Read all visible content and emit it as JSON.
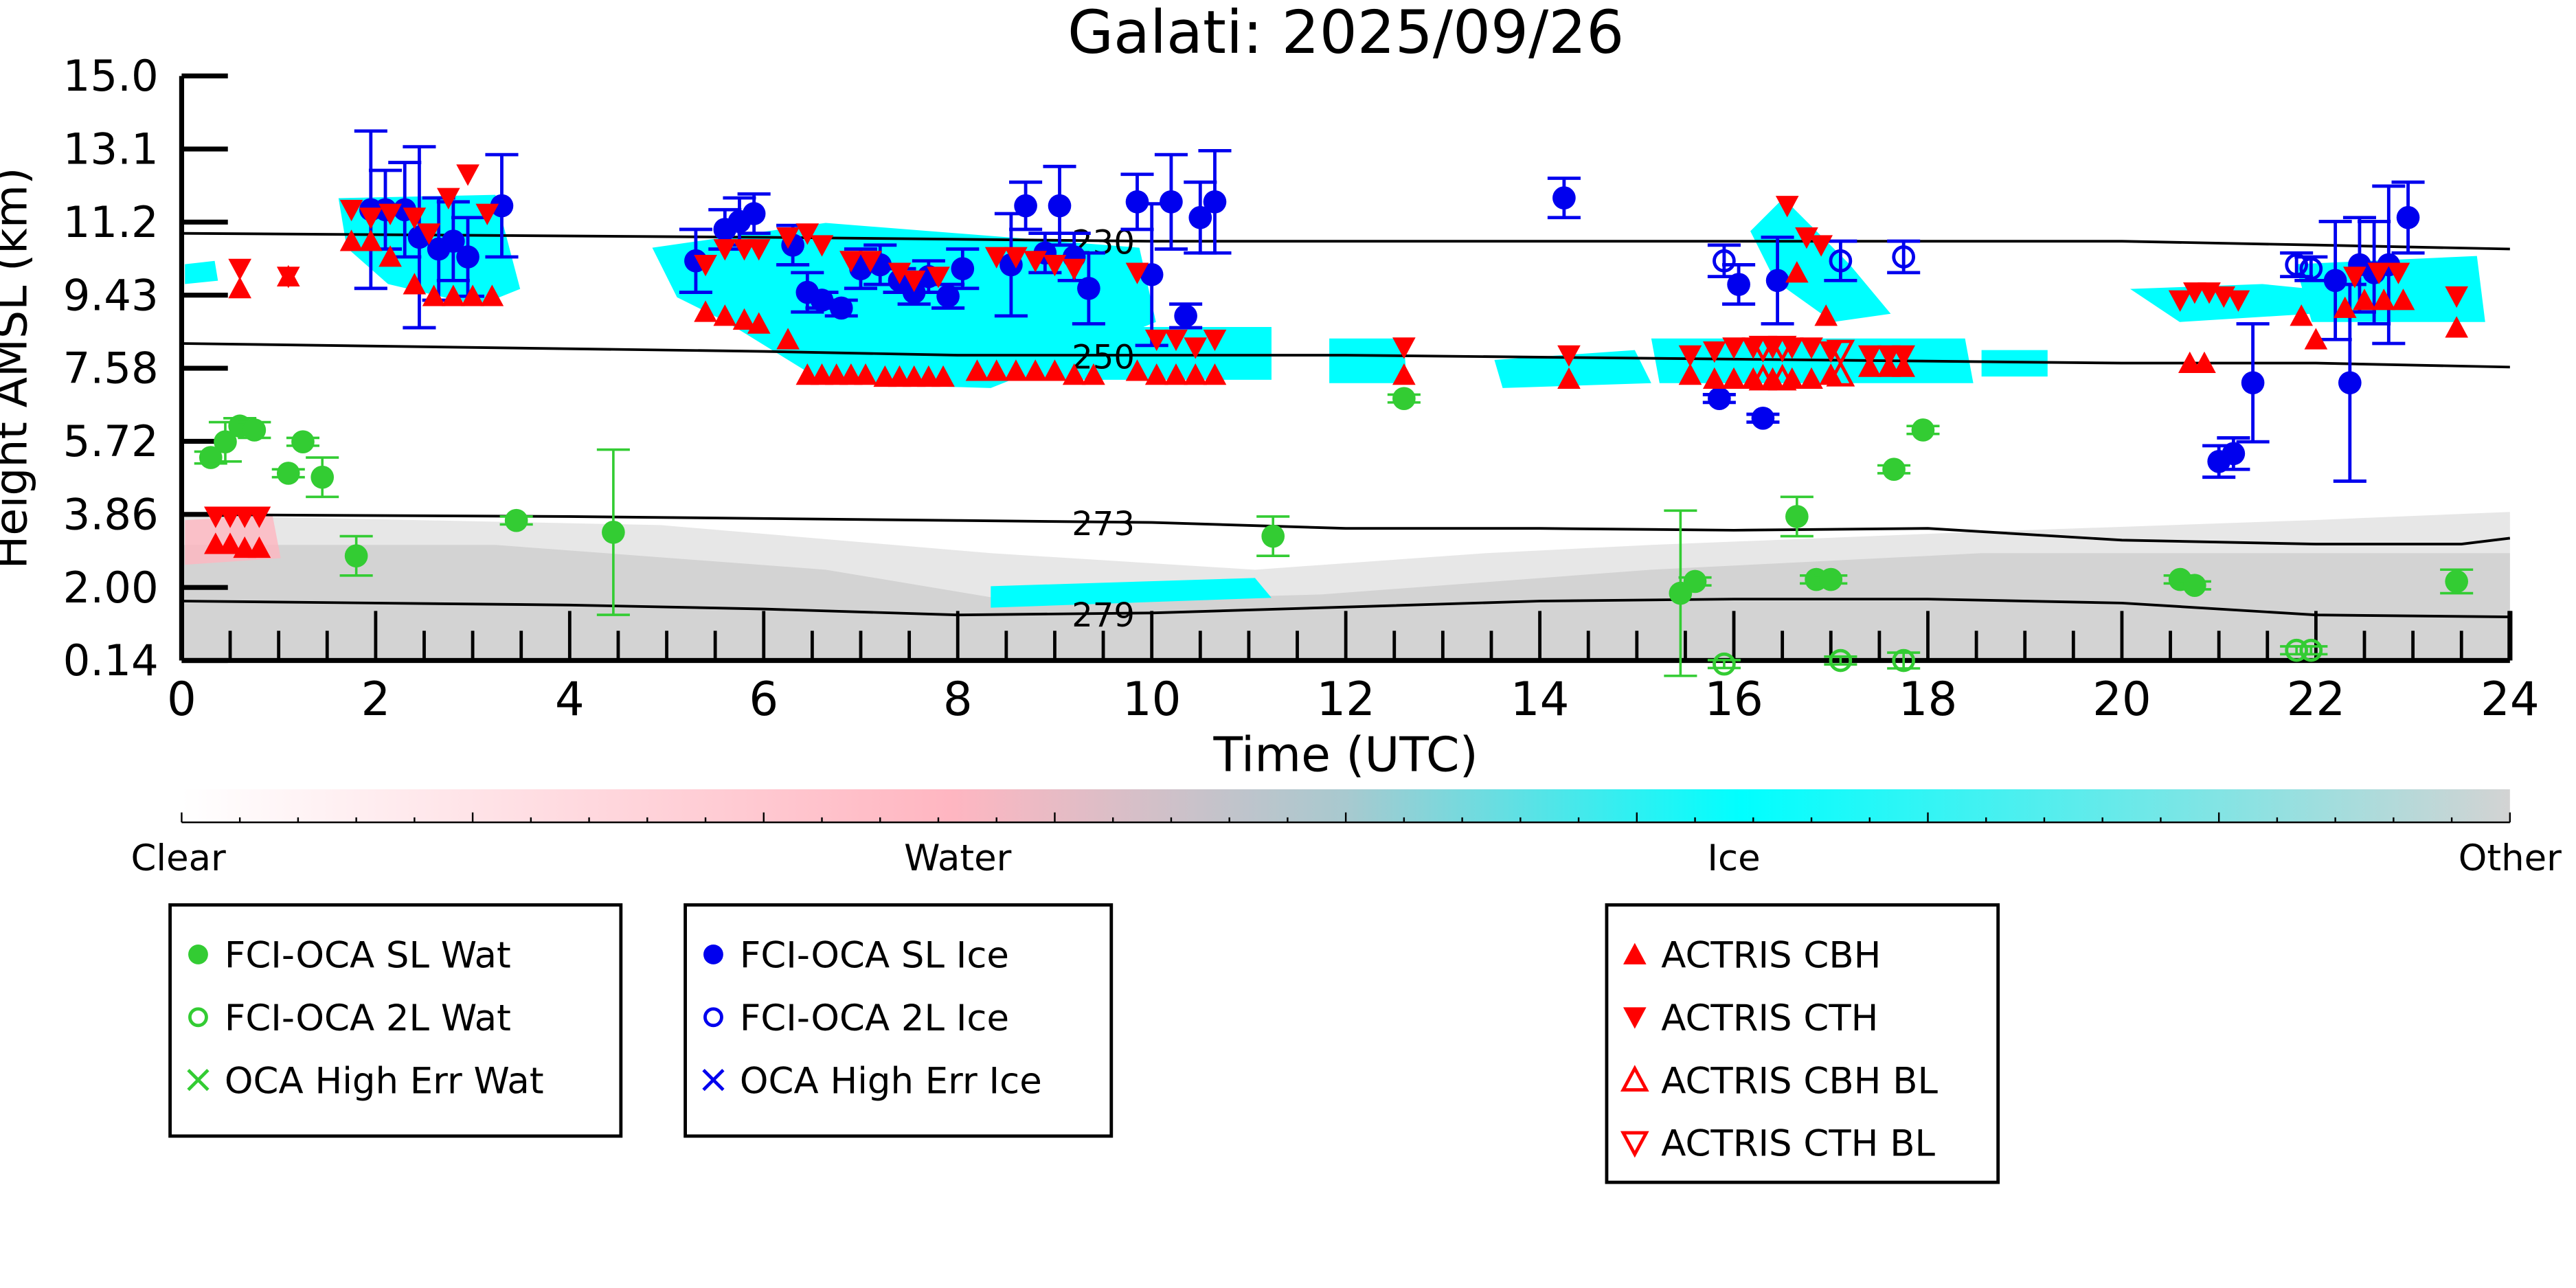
{
  "chart_data": {
    "type": "scatter",
    "title": "Galati: 2025/09/26",
    "xlabel": "Time (UTC)",
    "ylabel": "Height AMSL (km)",
    "xlim": [
      0,
      24
    ],
    "ylim": [
      0.14,
      15.0
    ],
    "xticks": [
      "0",
      "2",
      "4",
      "6",
      "8",
      "10",
      "12",
      "14",
      "16",
      "18",
      "20",
      "22",
      "24"
    ],
    "yticks": [
      "0.14",
      "2.00",
      "3.86",
      "5.72",
      "7.58",
      "9.43",
      "11.2",
      "13.1",
      "15.0"
    ],
    "colorbar": {
      "labels": [
        "Clear",
        "Water",
        "Ice",
        "Other"
      ],
      "colors": [
        "#ffffff",
        "#ffb6c1",
        "#00ffff",
        "#d3d3d3"
      ]
    },
    "contours": [
      {
        "label": "230",
        "x": [
          0,
          6,
          10,
          16,
          20,
          22,
          24
        ],
        "y": [
          11.0,
          10.9,
          10.8,
          10.8,
          10.8,
          10.7,
          10.6
        ]
      },
      {
        "label": "250",
        "x": [
          0,
          6,
          8,
          10,
          12,
          16,
          20,
          22,
          24
        ],
        "y": [
          8.2,
          8.0,
          7.9,
          7.9,
          7.9,
          7.8,
          7.7,
          7.7,
          7.6
        ]
      },
      {
        "label": "273",
        "x": [
          0,
          4,
          8,
          10,
          12,
          14,
          16,
          18,
          20,
          22,
          23.5,
          24
        ],
        "y": [
          3.85,
          3.8,
          3.7,
          3.65,
          3.5,
          3.5,
          3.45,
          3.5,
          3.2,
          3.1,
          3.1,
          3.25
        ]
      },
      {
        "label": "279",
        "x": [
          0,
          4,
          6,
          8,
          10,
          12,
          14,
          16,
          18,
          20,
          22,
          24
        ],
        "y": [
          1.65,
          1.55,
          1.45,
          1.3,
          1.35,
          1.5,
          1.65,
          1.7,
          1.7,
          1.6,
          1.3,
          1.25
        ]
      }
    ],
    "series": [
      {
        "name": "FCI-OCA SL Wat",
        "color": "#33cc33",
        "marker": "circle-filled",
        "points": [
          [
            0.3,
            5.3,
            0.15
          ],
          [
            0.45,
            5.7,
            0.5
          ],
          [
            0.6,
            6.1,
            0.2
          ],
          [
            0.75,
            6.0,
            0.2
          ],
          [
            1.1,
            4.9,
            0.1
          ],
          [
            1.25,
            5.7,
            0.1
          ],
          [
            1.45,
            4.8,
            0.5
          ],
          [
            1.8,
            2.8,
            0.5
          ],
          [
            3.45,
            3.7,
            0.1
          ],
          [
            4.45,
            3.4,
            2.1
          ],
          [
            11.25,
            3.3,
            0.5
          ],
          [
            12.6,
            6.8,
            0.1
          ],
          [
            15.45,
            1.85,
            2.1
          ],
          [
            15.6,
            2.15,
            0.1
          ],
          [
            16.65,
            3.8,
            0.5
          ],
          [
            16.85,
            2.2,
            0.1
          ],
          [
            17.0,
            2.2,
            0.1
          ],
          [
            17.65,
            5.0,
            0.1
          ],
          [
            17.95,
            6.0,
            0.1
          ],
          [
            20.6,
            2.2,
            0.1
          ],
          [
            20.75,
            2.05,
            0.1
          ],
          [
            23.45,
            2.15,
            0.3
          ]
        ]
      },
      {
        "name": "FCI-OCA 2L Wat",
        "color": "#33cc33",
        "marker": "circle-open",
        "points": [
          [
            15.9,
            0.05,
            0.1
          ],
          [
            17.1,
            0.14,
            0.1
          ],
          [
            17.75,
            0.14,
            0.2
          ],
          [
            21.8,
            0.4,
            0.1
          ],
          [
            21.95,
            0.4,
            0.1
          ]
        ]
      },
      {
        "name": "OCA High Err Wat",
        "color": "#33cc33",
        "marker": "x",
        "points": []
      },
      {
        "name": "FCI-OCA SL Ice",
        "color": "#0000ee",
        "marker": "circle-filled",
        "points": [
          [
            1.95,
            11.6,
            2.0
          ],
          [
            2.1,
            11.6,
            1.0
          ],
          [
            2.3,
            11.6,
            1.2
          ],
          [
            2.45,
            10.9,
            2.3
          ],
          [
            2.65,
            10.6,
            1.3
          ],
          [
            2.8,
            10.8,
            1.0
          ],
          [
            2.95,
            10.4,
            1.0
          ],
          [
            3.3,
            11.7,
            1.3
          ],
          [
            5.3,
            10.3,
            0.8
          ],
          [
            5.6,
            11.1,
            0.5
          ],
          [
            5.75,
            11.3,
            0.6
          ],
          [
            5.9,
            11.5,
            0.5
          ],
          [
            6.3,
            10.7,
            0.5
          ],
          [
            6.45,
            9.5,
            0.5
          ],
          [
            6.6,
            9.3,
            0.2
          ],
          [
            6.8,
            9.1,
            0.2
          ],
          [
            7.0,
            10.1,
            0.5
          ],
          [
            7.2,
            10.2,
            0.5
          ],
          [
            7.4,
            9.8,
            0.3
          ],
          [
            7.55,
            9.5,
            0.3
          ],
          [
            7.7,
            9.9,
            0.4
          ],
          [
            7.9,
            9.4,
            0.3
          ],
          [
            8.05,
            10.1,
            0.5
          ],
          [
            8.55,
            10.2,
            1.3
          ],
          [
            8.7,
            11.7,
            0.6
          ],
          [
            8.9,
            10.5,
            0.5
          ],
          [
            9.05,
            11.7,
            1.0
          ],
          [
            9.2,
            10.4,
            0.6
          ],
          [
            9.35,
            9.6,
            0.9
          ],
          [
            9.85,
            11.8,
            0.7
          ],
          [
            10.0,
            9.95,
            1.8
          ],
          [
            10.2,
            11.8,
            1.2
          ],
          [
            10.35,
            8.9,
            0.3
          ],
          [
            10.5,
            11.4,
            0.9
          ],
          [
            10.65,
            11.8,
            1.3
          ],
          [
            14.25,
            11.9,
            0.5
          ],
          [
            15.85,
            6.8,
            0.1
          ],
          [
            16.05,
            9.7,
            0.5
          ],
          [
            16.3,
            6.3,
            0.1
          ],
          [
            16.45,
            9.8,
            1.1
          ],
          [
            21.0,
            5.2,
            0.4
          ],
          [
            21.15,
            5.4,
            0.4
          ],
          [
            21.35,
            7.2,
            1.5
          ],
          [
            22.2,
            9.8,
            1.5
          ],
          [
            22.35,
            7.2,
            2.5
          ],
          [
            22.45,
            10.2,
            1.2
          ],
          [
            22.6,
            10.0,
            1.3
          ],
          [
            22.75,
            10.2,
            2.0
          ],
          [
            22.95,
            11.4,
            0.9
          ]
        ]
      },
      {
        "name": "FCI-OCA 2L Ice",
        "color": "#0000ee",
        "marker": "circle-open",
        "points": [
          [
            15.9,
            10.3,
            0.4
          ],
          [
            17.1,
            10.3,
            0.5
          ],
          [
            17.75,
            10.4,
            0.4
          ],
          [
            21.8,
            10.2,
            0.3
          ],
          [
            21.95,
            10.1,
            0.3
          ]
        ]
      },
      {
        "name": "OCA High Err Ice",
        "color": "#0000ee",
        "marker": "x",
        "points": []
      },
      {
        "name": "ACTRIS CBH",
        "color": "#ff0000",
        "marker": "triangle-up",
        "points": [
          [
            0.35,
            3.1
          ],
          [
            0.5,
            3.1
          ],
          [
            0.65,
            3.0
          ],
          [
            0.8,
            3.0
          ],
          [
            1.1,
            9.9
          ],
          [
            0.6,
            9.6
          ],
          [
            1.75,
            10.8
          ],
          [
            1.95,
            10.8
          ],
          [
            2.15,
            10.4
          ],
          [
            2.4,
            9.7
          ],
          [
            2.6,
            9.4
          ],
          [
            2.8,
            9.4
          ],
          [
            3.0,
            9.4
          ],
          [
            3.2,
            9.4
          ],
          [
            5.4,
            9.0
          ],
          [
            5.6,
            8.9
          ],
          [
            5.8,
            8.8
          ],
          [
            5.95,
            8.7
          ],
          [
            6.25,
            8.3
          ],
          [
            6.45,
            7.4
          ],
          [
            6.6,
            7.4
          ],
          [
            6.75,
            7.4
          ],
          [
            6.9,
            7.4
          ],
          [
            7.05,
            7.4
          ],
          [
            7.25,
            7.35
          ],
          [
            7.4,
            7.35
          ],
          [
            7.55,
            7.35
          ],
          [
            7.7,
            7.35
          ],
          [
            7.85,
            7.35
          ],
          [
            8.2,
            7.5
          ],
          [
            8.4,
            7.5
          ],
          [
            8.6,
            7.5
          ],
          [
            8.8,
            7.5
          ],
          [
            9.0,
            7.5
          ],
          [
            9.2,
            7.4
          ],
          [
            9.4,
            7.4
          ],
          [
            9.85,
            7.5
          ],
          [
            10.05,
            7.4
          ],
          [
            10.25,
            7.4
          ],
          [
            10.45,
            7.4
          ],
          [
            10.65,
            7.4
          ],
          [
            12.6,
            7.4
          ],
          [
            14.3,
            7.3
          ],
          [
            15.55,
            7.4
          ],
          [
            15.8,
            7.3
          ],
          [
            16.0,
            7.3
          ],
          [
            16.2,
            7.3
          ],
          [
            16.4,
            7.3
          ],
          [
            16.6,
            7.3
          ],
          [
            16.8,
            7.3
          ],
          [
            17.0,
            7.4
          ],
          [
            17.4,
            7.6
          ],
          [
            17.6,
            7.6
          ],
          [
            17.75,
            7.6
          ],
          [
            16.65,
            10.0
          ],
          [
            16.95,
            8.9
          ],
          [
            20.7,
            7.7
          ],
          [
            20.85,
            7.7
          ],
          [
            21.85,
            8.9
          ],
          [
            22.0,
            8.3
          ],
          [
            22.3,
            9.1
          ],
          [
            22.5,
            9.3
          ],
          [
            22.7,
            9.3
          ],
          [
            22.9,
            9.3
          ],
          [
            23.45,
            8.6
          ]
        ]
      },
      {
        "name": "ACTRIS CTH",
        "color": "#ff0000",
        "marker": "triangle-down",
        "points": [
          [
            0.35,
            3.8
          ],
          [
            0.5,
            3.8
          ],
          [
            0.65,
            3.8
          ],
          [
            0.8,
            3.8
          ],
          [
            0.6,
            10.1
          ],
          [
            1.1,
            9.9
          ],
          [
            1.75,
            11.6
          ],
          [
            1.95,
            11.4
          ],
          [
            2.15,
            11.5
          ],
          [
            2.4,
            11.4
          ],
          [
            2.55,
            11.0
          ],
          [
            2.75,
            11.9
          ],
          [
            2.95,
            12.5
          ],
          [
            3.15,
            11.5
          ],
          [
            5.4,
            10.2
          ],
          [
            5.6,
            10.6
          ],
          [
            5.8,
            10.6
          ],
          [
            5.95,
            10.6
          ],
          [
            6.25,
            10.9
          ],
          [
            6.45,
            11.0
          ],
          [
            6.6,
            10.7
          ],
          [
            6.9,
            10.3
          ],
          [
            7.1,
            10.3
          ],
          [
            7.4,
            10.0
          ],
          [
            7.55,
            9.8
          ],
          [
            7.8,
            9.9
          ],
          [
            8.4,
            10.4
          ],
          [
            8.6,
            10.4
          ],
          [
            8.8,
            10.3
          ],
          [
            9.0,
            10.2
          ],
          [
            9.2,
            10.1
          ],
          [
            9.85,
            10.0
          ],
          [
            10.05,
            8.3
          ],
          [
            10.25,
            8.3
          ],
          [
            10.45,
            8.1
          ],
          [
            10.65,
            8.3
          ],
          [
            12.6,
            8.1
          ],
          [
            14.3,
            7.9
          ],
          [
            15.55,
            7.9
          ],
          [
            15.8,
            8.0
          ],
          [
            16.0,
            8.1
          ],
          [
            16.2,
            8.1
          ],
          [
            16.4,
            8.1
          ],
          [
            16.6,
            8.1
          ],
          [
            16.8,
            8.1
          ],
          [
            17.0,
            8.0
          ],
          [
            17.4,
            7.9
          ],
          [
            17.6,
            7.9
          ],
          [
            17.75,
            7.9
          ],
          [
            16.55,
            11.7
          ],
          [
            16.75,
            10.9
          ],
          [
            16.9,
            10.7
          ],
          [
            20.6,
            9.3
          ],
          [
            20.75,
            9.5
          ],
          [
            20.9,
            9.5
          ],
          [
            21.05,
            9.4
          ],
          [
            21.2,
            9.3
          ],
          [
            22.4,
            9.9
          ],
          [
            22.65,
            10.0
          ],
          [
            22.85,
            10.0
          ],
          [
            23.45,
            9.4
          ]
        ]
      },
      {
        "name": "ACTRIS CBH BL",
        "color": "#ff0000",
        "marker": "triangle-up-open",
        "points": [
          [
            16.3,
            7.3
          ],
          [
            16.5,
            7.3
          ],
          [
            17.1,
            7.4
          ]
        ]
      },
      {
        "name": "ACTRIS CTH BL",
        "color": "#ff0000",
        "marker": "triangle-down-open",
        "points": [
          [
            16.3,
            8.1
          ],
          [
            16.5,
            8.1
          ],
          [
            17.1,
            8.0
          ]
        ]
      }
    ]
  }
}
